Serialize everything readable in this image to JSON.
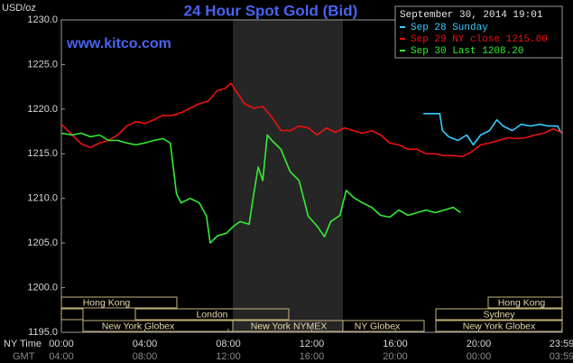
{
  "chart_data": {
    "type": "line",
    "title": "24 Hour Spot Gold (Bid)",
    "watermark": "www.kitco.com",
    "y_label": "USD/oz",
    "timestamp": "September 30, 2014 19:01",
    "x_label": "NY Time",
    "x2_label": "GMT",
    "xlim": [
      0,
      24
    ],
    "xticks": [
      {
        "value": 0,
        "label": "00:00"
      },
      {
        "value": 4,
        "label": "04:00"
      },
      {
        "value": 8,
        "label": "08:00"
      },
      {
        "value": 12,
        "label": "12:00"
      },
      {
        "value": 16,
        "label": "16:00"
      },
      {
        "value": 20,
        "label": "20:00"
      },
      {
        "value": 23.98,
        "label": "23:59"
      }
    ],
    "x2tick_labels": [
      "04:00",
      "08:00",
      "12:00",
      "16:00",
      "20:00",
      "00:00",
      "03:59"
    ],
    "ylim": [
      1195,
      1230
    ],
    "yticks": [
      {
        "value": 1195,
        "label": "1195.0"
      },
      {
        "value": 1200,
        "label": "1200.0"
      },
      {
        "value": 1205,
        "label": "1205.0"
      },
      {
        "value": 1210,
        "label": "1210.0"
      },
      {
        "value": 1215,
        "label": "1215.0"
      },
      {
        "value": 1220,
        "label": "1220.0"
      },
      {
        "value": 1225,
        "label": "1225.0"
      },
      {
        "value": 1230,
        "label": "1230.0"
      }
    ],
    "grid": false,
    "sessions": [
      "Hong Kong",
      "Hong Kong",
      "London",
      "Sydney",
      "New York Globex",
      "New York NYMEX",
      "NY Globex",
      "New York Globex"
    ],
    "series": [
      {
        "name": "Sep 28 Sunday",
        "color": "#33ccff",
        "x": [
          17.35,
          18.13,
          18.26,
          18.57,
          19.0,
          19.43,
          19.74,
          20.09,
          20.52,
          20.87,
          21.17,
          21.61,
          22.04,
          22.48,
          22.91,
          23.35,
          23.78,
          23.96
        ],
        "values": [
          1219.5,
          1219.5,
          1217.6,
          1216.9,
          1216.5,
          1217.1,
          1216.0,
          1217.1,
          1217.6,
          1218.8,
          1218.1,
          1217.6,
          1218.3,
          1218.1,
          1218.3,
          1218.1,
          1218.1,
          1217.3
        ]
      },
      {
        "name": "Sep 29 NY close 1215.80",
        "color": "#ee1111",
        "x": [
          0,
          0.52,
          0.96,
          1.39,
          1.83,
          2.26,
          2.7,
          3.13,
          3.57,
          4.0,
          4.43,
          4.87,
          5.3,
          5.74,
          6.17,
          6.61,
          7.04,
          7.48,
          7.83,
          8.13,
          8.35,
          8.78,
          9.22,
          9.65,
          10.09,
          10.52,
          10.96,
          11.39,
          11.83,
          12.26,
          12.7,
          13.13,
          13.57,
          14.0,
          14.43,
          14.87,
          15.3,
          15.74,
          16.17,
          16.61,
          17.04,
          17.48,
          17.91,
          18.35,
          18.78,
          19.22,
          19.65,
          20.09,
          20.52,
          20.96,
          21.39,
          21.83,
          22.26,
          22.7,
          23.13,
          23.57,
          23.96
        ],
        "values": [
          1218.3,
          1217.1,
          1216.1,
          1215.7,
          1216.2,
          1216.5,
          1217.1,
          1218.1,
          1218.6,
          1218.4,
          1218.8,
          1219.3,
          1219.3,
          1219.6,
          1220.1,
          1220.6,
          1220.9,
          1222.1,
          1222.3,
          1222.9,
          1222.1,
          1220.6,
          1220.1,
          1220.3,
          1219.1,
          1217.6,
          1217.6,
          1218.1,
          1217.9,
          1217.1,
          1217.9,
          1217.4,
          1217.9,
          1217.6,
          1217.3,
          1217.6,
          1217.1,
          1216.2,
          1216.0,
          1215.5,
          1215.5,
          1215.0,
          1215.0,
          1214.8,
          1214.8,
          1214.7,
          1215.2,
          1216.0,
          1216.2,
          1216.5,
          1216.8,
          1216.7,
          1216.8,
          1217.1,
          1217.3,
          1217.8,
          1217.4
        ]
      },
      {
        "name": "Sep 30 Last 1208.20",
        "color": "#33ee33",
        "x": [
          0,
          0.52,
          0.96,
          1.39,
          1.83,
          2.26,
          2.7,
          3.13,
          3.57,
          4.0,
          4.43,
          4.87,
          5.22,
          5.39,
          5.52,
          5.74,
          6.17,
          6.61,
          6.96,
          7.13,
          7.48,
          7.91,
          8.26,
          8.57,
          9.0,
          9.22,
          9.43,
          9.65,
          9.87,
          10.09,
          10.52,
          10.96,
          11.39,
          11.83,
          12.26,
          12.61,
          12.91,
          13.35,
          13.65,
          14.0,
          14.43,
          14.87,
          15.3,
          15.74,
          16.17,
          16.61,
          17.04,
          17.48,
          17.91,
          18.35,
          18.78,
          19.13
        ],
        "values": [
          1217.3,
          1217.1,
          1217.3,
          1216.9,
          1217.1,
          1216.5,
          1216.5,
          1216.2,
          1216.0,
          1216.2,
          1216.5,
          1216.7,
          1216.2,
          1213.0,
          1210.5,
          1209.5,
          1210.0,
          1209.5,
          1208.0,
          1205.0,
          1205.8,
          1206.1,
          1206.9,
          1207.4,
          1207.1,
          1210.5,
          1213.5,
          1212.0,
          1217.1,
          1216.5,
          1215.5,
          1213.0,
          1212.0,
          1208.0,
          1206.9,
          1205.7,
          1207.4,
          1208.1,
          1210.9,
          1210.1,
          1209.5,
          1209.0,
          1208.1,
          1207.9,
          1208.7,
          1208.1,
          1208.4,
          1208.7,
          1208.4,
          1208.7,
          1209.0,
          1208.4
        ]
      }
    ]
  }
}
